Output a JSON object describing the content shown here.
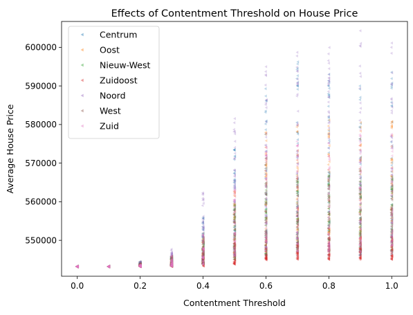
{
  "chart_data": {
    "type": "scatter",
    "title": "Effects of Contentment Threshold on House Price",
    "xlabel": "Contentment Threshold",
    "ylabel": "Average House Price",
    "xlim": [
      -0.05,
      1.05
    ],
    "ylim": [
      540700,
      606700
    ],
    "xticks": [
      {
        "value": 0.0,
        "label": "0.0"
      },
      {
        "value": 0.2,
        "label": "0.2"
      },
      {
        "value": 0.4,
        "label": "0.4"
      },
      {
        "value": 0.6,
        "label": "0.6"
      },
      {
        "value": 0.8,
        "label": "0.8"
      },
      {
        "value": 1.0,
        "label": "1.0"
      }
    ],
    "yticks": [
      {
        "value": 550000,
        "label": "550000"
      },
      {
        "value": 560000,
        "label": "560000"
      },
      {
        "value": 570000,
        "label": "570000"
      },
      {
        "value": 580000,
        "label": "580000"
      },
      {
        "value": 590000,
        "label": "590000"
      },
      {
        "value": 600000,
        "label": "600000"
      }
    ],
    "grid": false,
    "marker": "left-pointing triangle",
    "legend_position": "top-left",
    "x": [
      0.0,
      0.1,
      0.2,
      0.3,
      0.4,
      0.5,
      0.6,
      0.7,
      0.8,
      0.9,
      1.0
    ],
    "series": [
      {
        "name": "Centrum",
        "color": "#1f77b4",
        "ranges": [
          [
            543200,
            543200
          ],
          [
            543200,
            543200
          ],
          [
            543250,
            544200
          ],
          [
            543400,
            546000
          ],
          [
            544000,
            556000
          ],
          [
            545000,
            575000
          ],
          [
            546000,
            593000
          ],
          [
            546000,
            597000
          ],
          [
            546000,
            595000
          ],
          [
            546000,
            597000
          ],
          [
            546000,
            595000
          ]
        ]
      },
      {
        "name": "Oost",
        "color": "#ff7f0e",
        "ranges": [
          [
            543200,
            543200
          ],
          [
            543200,
            543200
          ],
          [
            543250,
            543800
          ],
          [
            543300,
            545200
          ],
          [
            543800,
            551000
          ],
          [
            545000,
            563000
          ],
          [
            548000,
            578000
          ],
          [
            550000,
            580000
          ],
          [
            550000,
            582000
          ],
          [
            550000,
            582000
          ],
          [
            550000,
            582000
          ]
        ]
      },
      {
        "name": "Nieuw-West",
        "color": "#2ca02c",
        "ranges": [
          [
            543200,
            543200
          ],
          [
            543200,
            543200
          ],
          [
            543250,
            544500
          ],
          [
            543300,
            546000
          ],
          [
            543800,
            552000
          ],
          [
            545000,
            560000
          ],
          [
            546000,
            565000
          ],
          [
            547000,
            566000
          ],
          [
            547000,
            567000
          ],
          [
            547000,
            566000
          ],
          [
            547000,
            567000
          ]
        ]
      },
      {
        "name": "Zuidoost",
        "color": "#d62728",
        "ranges": [
          [
            543200,
            543200
          ],
          [
            543200,
            543200
          ],
          [
            543200,
            543500
          ],
          [
            543200,
            544200
          ],
          [
            543300,
            548000
          ],
          [
            543800,
            550000
          ],
          [
            544800,
            551000
          ],
          [
            545000,
            551000
          ],
          [
            545000,
            551000
          ],
          [
            545000,
            551000
          ],
          [
            545000,
            551000
          ]
        ]
      },
      {
        "name": "Noord",
        "color": "#9467bd",
        "ranges": [
          [
            543200,
            543200
          ],
          [
            543200,
            543200
          ],
          [
            543250,
            544500
          ],
          [
            543400,
            548000
          ],
          [
            544000,
            562500
          ],
          [
            546000,
            582000
          ],
          [
            548000,
            595500
          ],
          [
            549000,
            601500
          ],
          [
            549000,
            600000
          ],
          [
            549000,
            604500
          ],
          [
            549000,
            603500
          ]
        ]
      },
      {
        "name": "West",
        "color": "#8c564b",
        "ranges": [
          [
            543200,
            543200
          ],
          [
            543200,
            543200
          ],
          [
            543250,
            544000
          ],
          [
            543300,
            546000
          ],
          [
            543800,
            551000
          ],
          [
            545000,
            560000
          ],
          [
            546000,
            566000
          ],
          [
            547000,
            567000
          ],
          [
            547000,
            567000
          ],
          [
            547000,
            568000
          ],
          [
            547000,
            567000
          ]
        ]
      },
      {
        "name": "Zuid",
        "color": "#e377c2",
        "ranges": [
          [
            543200,
            543200
          ],
          [
            543200,
            543200
          ],
          [
            543200,
            543700
          ],
          [
            543300,
            546000
          ],
          [
            543800,
            552000
          ],
          [
            545000,
            565000
          ],
          [
            546000,
            575000
          ],
          [
            547000,
            576000
          ],
          [
            547000,
            578000
          ],
          [
            547000,
            579000
          ],
          [
            547000,
            580000
          ]
        ]
      }
    ],
    "points_per_series_per_x": 40
  }
}
